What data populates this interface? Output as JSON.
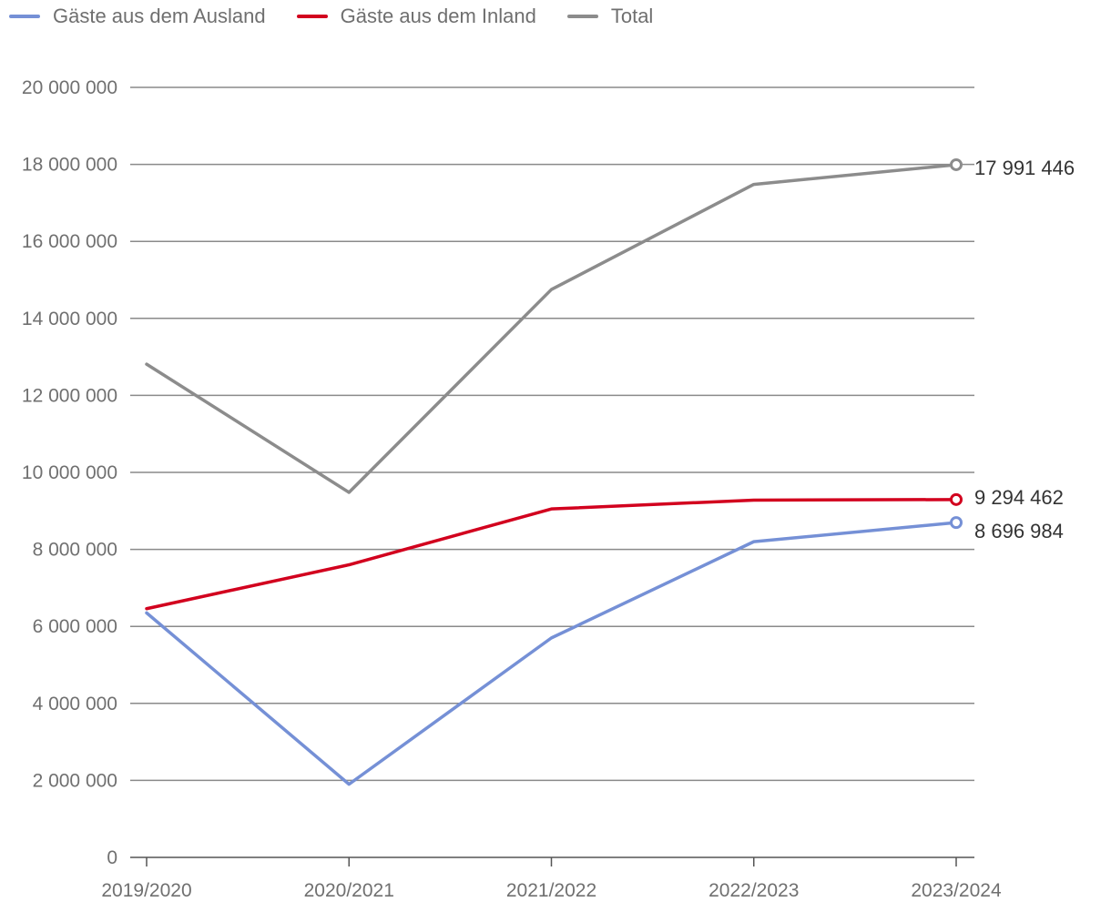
{
  "chart_data": {
    "type": "line",
    "title": "",
    "xlabel": "",
    "ylabel": "",
    "categories": [
      "2019/2020",
      "2020/2021",
      "2021/2022",
      "2022/2023",
      "2023/2024"
    ],
    "ylim": [
      0,
      20000000
    ],
    "yticks": [
      0,
      2000000,
      4000000,
      6000000,
      8000000,
      10000000,
      12000000,
      14000000,
      16000000,
      18000000,
      20000000
    ],
    "ytick_labels": [
      "0",
      "2 000 000",
      "4 000 000",
      "6 000 000",
      "8 000 000",
      "10 000 000",
      "12 000 000",
      "14 000 000",
      "16 000 000",
      "18 000 000",
      "20 000 000"
    ],
    "grid": true,
    "legend_position": "top-left",
    "series": [
      {
        "name": "Gäste aus dem Ausland",
        "color": "#7590d6",
        "values": [
          6350000,
          1900000,
          5700000,
          8200000,
          8696984
        ],
        "end_label": "8 696 984"
      },
      {
        "name": "Gäste aus dem Inland",
        "color": "#d2001e",
        "values": [
          6460000,
          7600000,
          9050000,
          9280000,
          9294462
        ],
        "end_label": "9 294 462"
      },
      {
        "name": "Total",
        "color": "#8c8c8c",
        "values": [
          12810000,
          9480000,
          14750000,
          17480000,
          17991446
        ],
        "end_label": "17 991 446"
      }
    ]
  }
}
